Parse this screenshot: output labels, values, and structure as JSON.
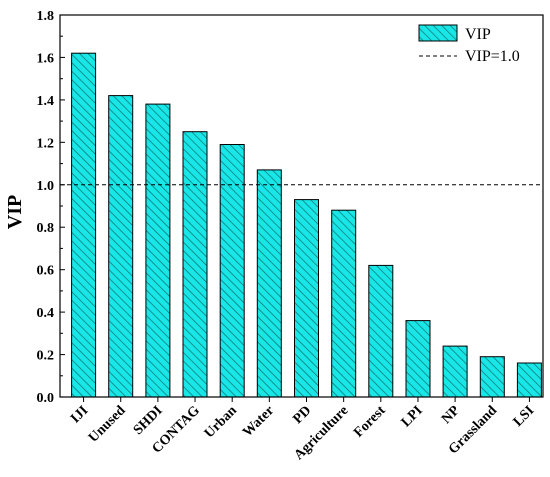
{
  "chart_data": {
    "type": "bar",
    "ylabel": "VIP",
    "xlabel": "",
    "ylim": [
      0,
      1.8
    ],
    "yticks": [
      0.0,
      0.2,
      0.4,
      0.6,
      0.8,
      1.0,
      1.2,
      1.4,
      1.6,
      1.8
    ],
    "ytick_labels": [
      "0.0",
      "0.2",
      "0.4",
      "0.6",
      "0.8",
      "1.0",
      "1.2",
      "1.4",
      "1.6",
      "1.8"
    ],
    "categories": [
      "IJI",
      "Unused",
      "SHDI",
      "CONTAG",
      "Urban",
      "Water",
      "PD",
      "Agriculture",
      "Forest",
      "LPI",
      "NP",
      "Grassland",
      "LSI"
    ],
    "series": [
      {
        "name": "VIP",
        "values": [
          1.62,
          1.42,
          1.38,
          1.25,
          1.19,
          1.07,
          0.93,
          0.88,
          0.62,
          0.36,
          0.24,
          0.19,
          0.16
        ]
      }
    ],
    "reference_line": {
      "name": "VIP=1.0",
      "value": 1.0
    },
    "legend": {
      "placement": "top-right",
      "entries": [
        "VIP",
        "VIP=1.0"
      ]
    },
    "grid": false,
    "colors": {
      "bar_fill": "#19e6e6",
      "bar_hatch": "#0a6f6f",
      "bar_edge": "#000000",
      "ref_line": "#000000"
    }
  }
}
